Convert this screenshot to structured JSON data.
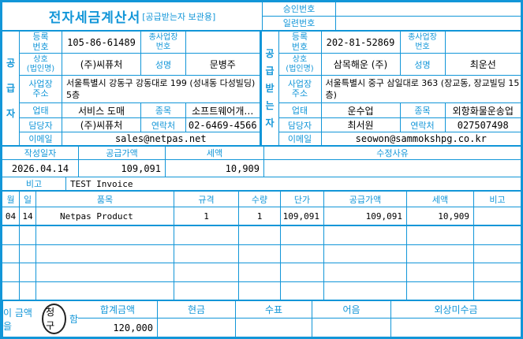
{
  "accent_color": "#1296D8",
  "header": {
    "title": "전자세금계산서",
    "title_tag": "[공급받는자 보관용]",
    "approval_no_label": "승인번호",
    "approval_no_value": "",
    "serial_no_label": "일련번호",
    "serial_no_value": ""
  },
  "supplier": {
    "band_label": "공\n급\n자",
    "reg_no_label": "등록\n번호",
    "reg_no": "105-86-61489",
    "sub_biz_label": "종사업장\n번호",
    "sub_biz_no": "",
    "company_label": "상호\n(법인명)",
    "company": "(주)씨퓨처",
    "name_label": "성명",
    "name": "문병주",
    "address_label": "사업장\n주소",
    "address": "서울특별시 강동구 강동대로 199 (성내동 다성빌딩) 5층",
    "biz_type_label": "업태",
    "biz_type": "서비스 도매",
    "biz_item_label": "종목",
    "biz_item": "소프트웨어개…",
    "contact_label": "담당자",
    "contact": "(주)씨퓨처",
    "phone_label": "연락처",
    "phone": "02-6469-4566",
    "email_label": "이메일",
    "email": "sales@netpas.net"
  },
  "buyer": {
    "band_label": "공\n급\n받\n는\n자",
    "reg_no_label": "등록\n번호",
    "reg_no": "202-81-52869",
    "sub_biz_label": "종사업장\n번호",
    "sub_biz_no": "",
    "company_label": "상호\n(법인명)",
    "company": "삼목해운 (주)",
    "name_label": "성명",
    "name": "최운선",
    "address_label": "사업장\n주소",
    "address": "서울특별시 중구 삼일대로 363 (장교동, 장교빌딩 15층)",
    "biz_type_label": "업태",
    "biz_type": "운수업",
    "biz_item_label": "종목",
    "biz_item": "외항화물운송업",
    "contact_label": "담당자",
    "contact": "최서원",
    "phone_label": "연락처",
    "phone": "027507498",
    "email_label": "이메일",
    "email": "seowon@sammokshpg.co.kr"
  },
  "summary": {
    "date_label": "작성일자",
    "date": "2026.04.14",
    "supply_label": "공급가액",
    "supply": "109,091",
    "tax_label": "세액",
    "tax": "10,909",
    "reason_label": "수정사유",
    "reason": "",
    "note_label": "비고",
    "note": "TEST Invoice"
  },
  "items": {
    "headers": {
      "month": "월",
      "day": "일",
      "name": "품목",
      "spec": "규격",
      "qty": "수량",
      "unit": "단가",
      "supply": "공급가액",
      "tax": "세액",
      "note": "비고"
    },
    "rows": [
      {
        "month": "04",
        "day": "14",
        "name": "Netpas Product",
        "spec": "1",
        "qty": "1",
        "unit": "109,091",
        "supply": "109,091",
        "tax": "10,909",
        "note": ""
      }
    ]
  },
  "totals": {
    "total_label": "합계금액",
    "total": "120,000",
    "cash_label": "현금",
    "cash": "",
    "check_label": "수표",
    "check": "",
    "bill_label": "어음",
    "bill": "",
    "credit_label": "외상미수금",
    "credit": "",
    "statement_prefix": "이 금액을",
    "statement_highlight": "청구",
    "statement_suffix": "함"
  }
}
